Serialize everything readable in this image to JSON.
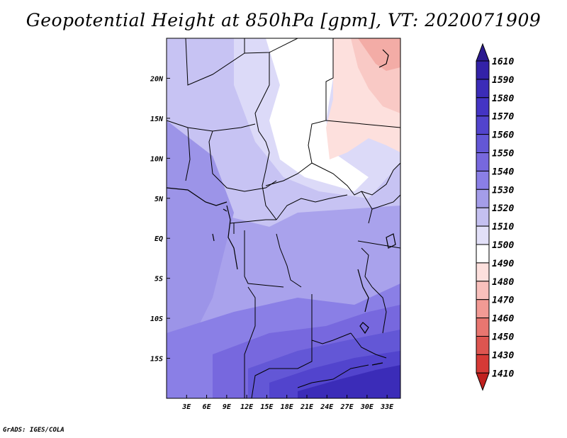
{
  "title": "Geopotential Height at 850hPa [gpm], VT: 2020071909",
  "credit": "GrADS: IGES/COLA",
  "map": {
    "variable": "Geopotential Height",
    "level": "850hPa",
    "units": "gpm",
    "valid_time": "2020071909",
    "lon_range": [
      0,
      35
    ],
    "lat_range": [
      -20,
      25
    ],
    "x_ticks": [
      "3E",
      "6E",
      "9E",
      "12E",
      "15E",
      "18E",
      "21E",
      "24E",
      "27E",
      "30E",
      "33E"
    ],
    "x_tick_values": [
      3,
      6,
      9,
      12,
      15,
      18,
      21,
      24,
      27,
      30,
      33
    ],
    "y_ticks": [
      "20N",
      "15N",
      "10N",
      "5N",
      "EQ",
      "5S",
      "10S",
      "15S"
    ],
    "y_tick_values": [
      20,
      15,
      10,
      5,
      0,
      -5,
      -10,
      -15
    ]
  },
  "colorbar": {
    "levels": [
      "1610",
      "1590",
      "1580",
      "1570",
      "1560",
      "1550",
      "1540",
      "1530",
      "1520",
      "1510",
      "1500",
      "1490",
      "1480",
      "1470",
      "1460",
      "1450",
      "1430",
      "1410"
    ],
    "colors": [
      "#2b1a8f",
      "#3322a8",
      "#3b2cb8",
      "#4434c4",
      "#5244cd",
      "#6357d6",
      "#7768de",
      "#8a7fe6",
      "#a49de9",
      "#c4c0f0",
      "#e2e0f8",
      "#ffffff",
      "#fde0dd",
      "#f9c0bc",
      "#f29a94",
      "#e87670",
      "#dd5550",
      "#d63a36",
      "#c0201e"
    ]
  }
}
